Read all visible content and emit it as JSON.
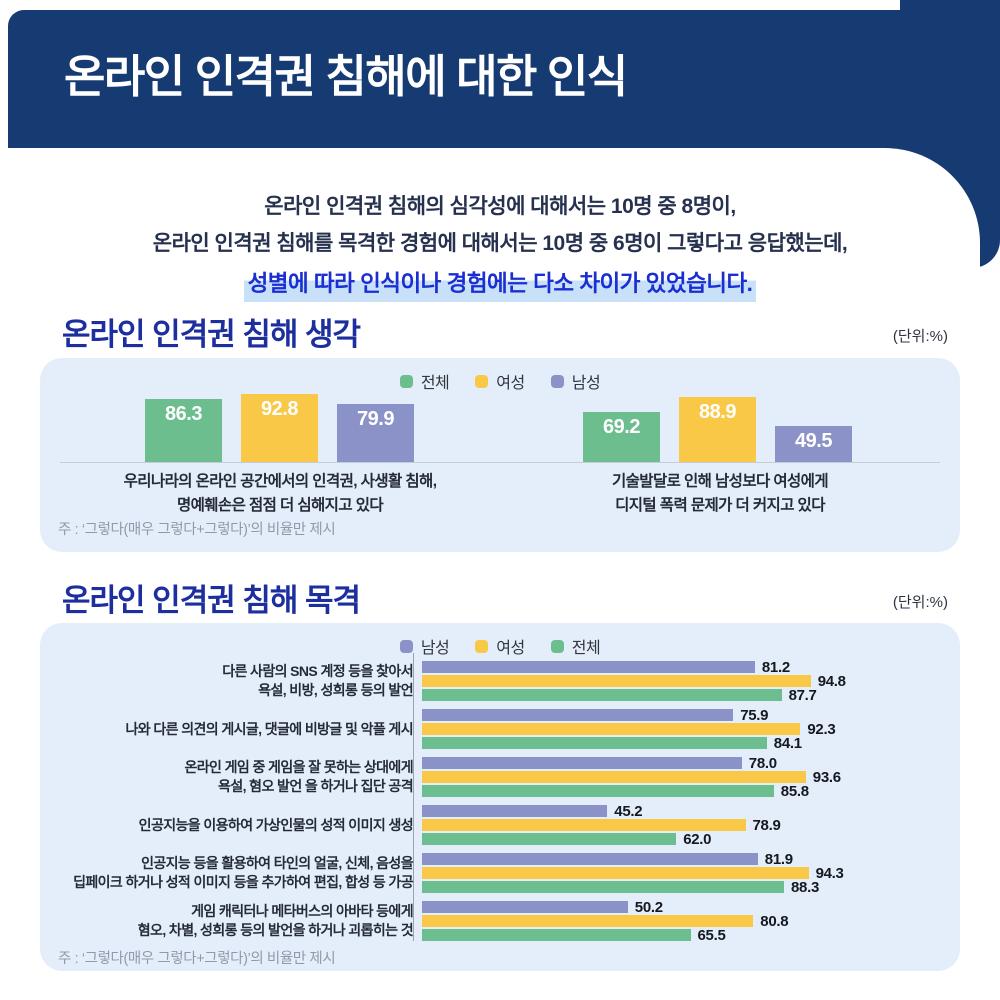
{
  "page": {
    "header_title": "온라인 인격권 침해에 대한 인식",
    "intro": {
      "line1": "온라인 인격권 침해의 심각성에 대해서는 10명 중 8명이,",
      "line2": "온라인 인격권 침해를 목격한 경험에 대해서는 10명 중 6명이 그렇다고 응답했는데,",
      "highlight": "성별에 따라 인식이나 경험에는 다소 차이가 있었습니다."
    }
  },
  "colors": {
    "navy": "#163a72",
    "heading_blue": "#1d2f9e",
    "panel_bg": "#e4eefb",
    "highlight_bg": "#c9e1f8",
    "highlight_text": "#1b2ed2",
    "green": "#6cbe8e",
    "yellow": "#f9c847",
    "purple": "#8b92c7"
  },
  "section1": {
    "title": "온라인 인격권 침해 생각",
    "unit": "(단위:%)",
    "note": "주 : ‘그렇다(매우 그렇다+그렇다)’의 비율만 제시"
  },
  "section2": {
    "title": "온라인 인격권 침해 목격",
    "unit": "(단위:%)",
    "note": "주 : ‘그렇다(매우 그렇다+그렇다)’의 비율만 제시"
  },
  "chart_data": [
    {
      "type": "bar",
      "title": "온라인 인격권 침해 생각",
      "unit": "%",
      "orientation": "vertical",
      "legend_position": "top-center",
      "ylim": [
        0,
        100
      ],
      "grid": false,
      "categories": [
        [
          "우리나라의 온라인 공간에서의 인격권, 사생활 침해,",
          "명예훼손은 점점 더 심해지고 있다"
        ],
        [
          "기술발달로 인해 남성보다 여성에게",
          "디지털 폭력 문제가 더 커지고 있다"
        ]
      ],
      "series": [
        {
          "name": "전체",
          "color": "#6cbe8e",
          "values": [
            86.3,
            69.2
          ]
        },
        {
          "name": "여성",
          "color": "#f9c847",
          "values": [
            92.8,
            88.9
          ]
        },
        {
          "name": "남성",
          "color": "#8b92c7",
          "values": [
            79.9,
            49.5
          ]
        }
      ]
    },
    {
      "type": "bar",
      "title": "온라인 인격권 침해 목격",
      "unit": "%",
      "orientation": "horizontal",
      "legend_position": "top-center",
      "xlim": [
        0,
        100
      ],
      "grid": false,
      "categories": [
        [
          "다른 사람의 SNS 계정 등을 찾아서",
          "욕설, 비방, 성희롱 등의 발언"
        ],
        [
          "나와 다른 의견의 게시글, 댓글에 비방글 및 악플 게시"
        ],
        [
          "온라인 게임 중 게임을 잘 못하는 상대에게",
          "욕설, 혐오 발언 을 하거나 집단 공격"
        ],
        [
          "인공지능을 이용하여 가상인물의 성적 이미지 생성"
        ],
        [
          "인공지능 등을 활용하여 타인의 얼굴, 신체, 음성을",
          "딥페이크 하거나 성적 이미지 등을 추가하여 편집, 합성 등 가공"
        ],
        [
          "게임 캐릭터나 메타버스의 아바타 등에게",
          "혐오, 차별, 성희롱 등의 발언을 하거나 괴롭히는 것"
        ]
      ],
      "series": [
        {
          "name": "남성",
          "color": "#8b92c7",
          "values": [
            81.2,
            75.9,
            78.0,
            45.2,
            81.9,
            50.2
          ]
        },
        {
          "name": "여성",
          "color": "#f9c847",
          "values": [
            94.8,
            92.3,
            93.6,
            78.9,
            94.3,
            80.8
          ]
        },
        {
          "name": "전체",
          "color": "#6cbe8e",
          "values": [
            87.7,
            84.1,
            85.8,
            62.0,
            88.3,
            65.5
          ]
        }
      ]
    }
  ]
}
